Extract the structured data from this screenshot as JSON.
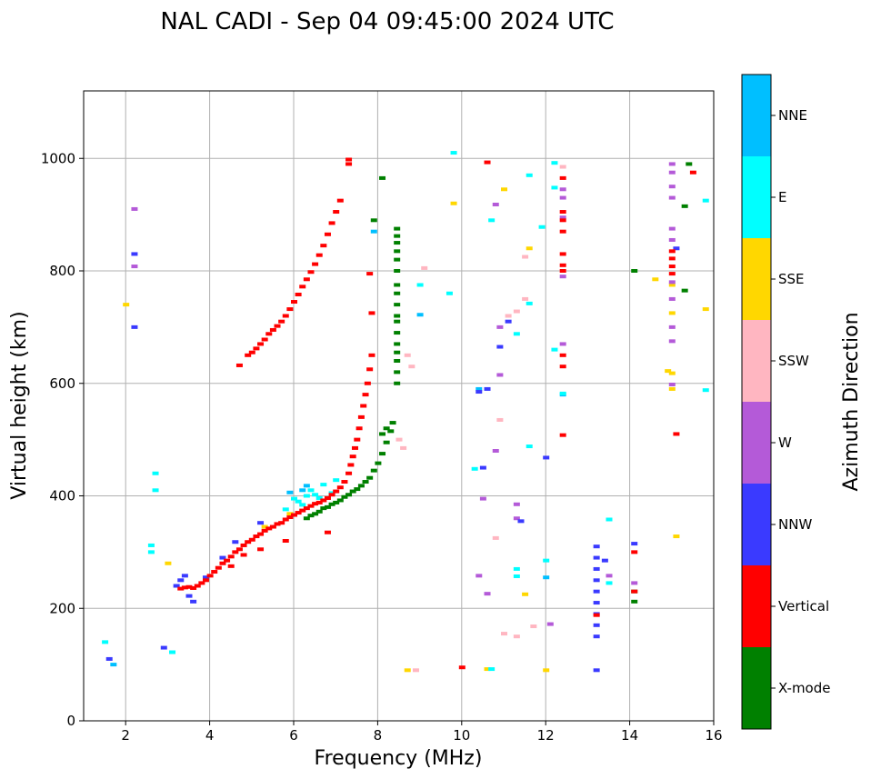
{
  "chart_data": {
    "type": "scatter",
    "title": "NAL CADI - Sep 04 09:45:00 2024 UTC",
    "xlabel": "Frequency (MHz)",
    "ylabel": "Virtual height (km)",
    "xlim": [
      1,
      16
    ],
    "ylim": [
      0,
      1120
    ],
    "xticks": [
      2,
      4,
      6,
      8,
      10,
      12,
      14,
      16
    ],
    "yticks": [
      0,
      200,
      400,
      600,
      800,
      1000
    ],
    "grid": true,
    "colorbar": {
      "title": "Azimuth Direction",
      "categories": [
        "X-mode",
        "Vertical",
        "NNW",
        "W",
        "SSW",
        "SSE",
        "E",
        "NNE"
      ],
      "colors": [
        "#008000",
        "#ff0000",
        "#3a3aff",
        "#b45ad8",
        "#ffb6c1",
        "#ffd700",
        "#00ffff",
        "#00bfff"
      ]
    },
    "series": [
      {
        "name": "X-mode",
        "points": [
          [
            6.3,
            360
          ],
          [
            6.4,
            365
          ],
          [
            6.5,
            368
          ],
          [
            6.6,
            372
          ],
          [
            6.7,
            378
          ],
          [
            6.8,
            380
          ],
          [
            6.9,
            385
          ],
          [
            7.0,
            388
          ],
          [
            7.1,
            392
          ],
          [
            7.2,
            398
          ],
          [
            7.3,
            402
          ],
          [
            7.4,
            408
          ],
          [
            7.5,
            412
          ],
          [
            7.6,
            418
          ],
          [
            7.7,
            425
          ],
          [
            7.8,
            432
          ],
          [
            7.9,
            445
          ],
          [
            8.0,
            458
          ],
          [
            8.1,
            475
          ],
          [
            8.2,
            495
          ],
          [
            8.3,
            515
          ],
          [
            8.35,
            530
          ],
          [
            8.1,
            510
          ],
          [
            8.2,
            520
          ],
          [
            8.45,
            600
          ],
          [
            8.45,
            620
          ],
          [
            8.45,
            640
          ],
          [
            8.45,
            655
          ],
          [
            8.45,
            670
          ],
          [
            8.45,
            690
          ],
          [
            8.45,
            710
          ],
          [
            8.45,
            720
          ],
          [
            8.45,
            740
          ],
          [
            8.45,
            760
          ],
          [
            8.45,
            775
          ],
          [
            8.45,
            800
          ],
          [
            8.45,
            820
          ],
          [
            8.45,
            835
          ],
          [
            8.45,
            850
          ],
          [
            8.45,
            862
          ],
          [
            8.45,
            875
          ],
          [
            7.9,
            890
          ],
          [
            8.1,
            965
          ],
          [
            14.1,
            800
          ],
          [
            14.1,
            230
          ],
          [
            14.1,
            212
          ],
          [
            15.3,
            765
          ],
          [
            15.3,
            915
          ],
          [
            15.4,
            990
          ]
        ]
      },
      {
        "name": "Vertical",
        "points": [
          [
            3.3,
            235
          ],
          [
            3.4,
            237
          ],
          [
            3.5,
            238
          ],
          [
            3.6,
            236
          ],
          [
            3.7,
            240
          ],
          [
            3.8,
            245
          ],
          [
            3.9,
            250
          ],
          [
            4.0,
            258
          ],
          [
            4.1,
            265
          ],
          [
            4.2,
            272
          ],
          [
            4.3,
            280
          ],
          [
            4.4,
            285
          ],
          [
            4.5,
            292
          ],
          [
            4.6,
            300
          ],
          [
            4.7,
            305
          ],
          [
            4.8,
            312
          ],
          [
            4.9,
            318
          ],
          [
            5.0,
            322
          ],
          [
            5.1,
            328
          ],
          [
            5.2,
            332
          ],
          [
            5.3,
            338
          ],
          [
            5.4,
            342
          ],
          [
            5.5,
            345
          ],
          [
            5.6,
            350
          ],
          [
            5.7,
            352
          ],
          [
            5.8,
            358
          ],
          [
            5.9,
            362
          ],
          [
            6.0,
            366
          ],
          [
            6.1,
            370
          ],
          [
            6.2,
            374
          ],
          [
            6.3,
            378
          ],
          [
            6.4,
            382
          ],
          [
            6.5,
            386
          ],
          [
            6.6,
            388
          ],
          [
            6.7,
            392
          ],
          [
            6.8,
            396
          ],
          [
            6.9,
            402
          ],
          [
            7.0,
            408
          ],
          [
            7.1,
            415
          ],
          [
            7.2,
            425
          ],
          [
            7.3,
            440
          ],
          [
            7.35,
            455
          ],
          [
            7.4,
            470
          ],
          [
            7.45,
            485
          ],
          [
            7.5,
            500
          ],
          [
            7.55,
            520
          ],
          [
            7.6,
            540
          ],
          [
            7.65,
            560
          ],
          [
            7.7,
            580
          ],
          [
            7.75,
            600
          ],
          [
            7.8,
            625
          ],
          [
            7.85,
            650
          ],
          [
            7.85,
            725
          ],
          [
            7.8,
            795
          ],
          [
            4.7,
            632
          ],
          [
            4.9,
            650
          ],
          [
            5.0,
            655
          ],
          [
            5.1,
            662
          ],
          [
            5.2,
            670
          ],
          [
            5.3,
            678
          ],
          [
            5.4,
            688
          ],
          [
            5.5,
            695
          ],
          [
            5.6,
            702
          ],
          [
            5.7,
            710
          ],
          [
            5.8,
            720
          ],
          [
            5.9,
            732
          ],
          [
            6.0,
            745
          ],
          [
            6.1,
            758
          ],
          [
            6.2,
            772
          ],
          [
            6.3,
            785
          ],
          [
            6.4,
            798
          ],
          [
            6.5,
            812
          ],
          [
            6.6,
            828
          ],
          [
            6.7,
            845
          ],
          [
            6.8,
            865
          ],
          [
            6.9,
            885
          ],
          [
            7.0,
            905
          ],
          [
            7.1,
            925
          ],
          [
            7.3,
            990
          ],
          [
            7.3,
            998
          ],
          [
            5.8,
            320
          ],
          [
            5.2,
            305
          ],
          [
            4.5,
            275
          ],
          [
            4.8,
            295
          ],
          [
            6.8,
            335
          ],
          [
            10.6,
            993
          ],
          [
            12.4,
            965
          ],
          [
            12.4,
            905
          ],
          [
            12.4,
            890
          ],
          [
            12.4,
            870
          ],
          [
            12.4,
            830
          ],
          [
            12.4,
            810
          ],
          [
            12.4,
            800
          ],
          [
            12.4,
            650
          ],
          [
            12.4,
            630
          ],
          [
            12.4,
            508
          ],
          [
            14.1,
            300
          ],
          [
            15.0,
            835
          ],
          [
            15.0,
            822
          ],
          [
            15.0,
            808
          ],
          [
            15.0,
            795
          ],
          [
            15.1,
            510
          ],
          [
            15.5,
            975
          ],
          [
            10.0,
            95
          ],
          [
            13.2,
            188
          ],
          [
            14.1,
            230
          ]
        ]
      },
      {
        "name": "NNW",
        "points": [
          [
            3.3,
            250
          ],
          [
            3.4,
            258
          ],
          [
            3.2,
            240
          ],
          [
            3.5,
            222
          ],
          [
            3.6,
            212
          ],
          [
            3.9,
            255
          ],
          [
            4.3,
            290
          ],
          [
            4.6,
            318
          ],
          [
            5.2,
            352
          ],
          [
            13.2,
            150
          ],
          [
            13.2,
            170
          ],
          [
            13.2,
            190
          ],
          [
            13.2,
            210
          ],
          [
            13.2,
            230
          ],
          [
            13.2,
            250
          ],
          [
            13.2,
            270
          ],
          [
            13.2,
            290
          ],
          [
            13.2,
            310
          ],
          [
            14.1,
            315
          ],
          [
            15.1,
            840
          ],
          [
            11.1,
            710
          ],
          [
            10.6,
            590
          ],
          [
            10.4,
            585
          ],
          [
            2.2,
            830
          ],
          [
            2.2,
            700
          ],
          [
            1.6,
            110
          ],
          [
            2.9,
            130
          ],
          [
            10.9,
            665
          ],
          [
            10.5,
            450
          ],
          [
            11.4,
            355
          ],
          [
            12.0,
            468
          ],
          [
            13.2,
            90
          ],
          [
            13.4,
            285
          ]
        ]
      },
      {
        "name": "W",
        "points": [
          [
            2.2,
            910
          ],
          [
            2.2,
            808
          ],
          [
            12.4,
            945
          ],
          [
            12.4,
            930
          ],
          [
            12.4,
            895
          ],
          [
            12.4,
            790
          ],
          [
            12.4,
            670
          ],
          [
            15.0,
            990
          ],
          [
            15.0,
            975
          ],
          [
            15.0,
            950
          ],
          [
            15.0,
            930
          ],
          [
            15.0,
            875
          ],
          [
            15.0,
            855
          ],
          [
            15.0,
            780
          ],
          [
            15.0,
            750
          ],
          [
            15.0,
            700
          ],
          [
            15.0,
            675
          ],
          [
            15.0,
            598
          ],
          [
            10.8,
            480
          ],
          [
            10.9,
            700
          ],
          [
            10.9,
            615
          ],
          [
            10.5,
            395
          ],
          [
            11.3,
            360
          ],
          [
            11.3,
            385
          ],
          [
            10.4,
            258
          ],
          [
            12.1,
            172
          ],
          [
            13.5,
            258
          ],
          [
            14.1,
            245
          ],
          [
            10.6,
            226
          ],
          [
            10.8,
            918
          ]
        ]
      },
      {
        "name": "SSW",
        "points": [
          [
            11.5,
            825
          ],
          [
            11.5,
            750
          ],
          [
            11.1,
            720
          ],
          [
            11.3,
            728
          ],
          [
            12.4,
            985
          ],
          [
            11.7,
            168
          ],
          [
            11.3,
            150
          ],
          [
            11.0,
            155
          ],
          [
            10.8,
            325
          ],
          [
            10.9,
            535
          ],
          [
            8.7,
            650
          ],
          [
            8.8,
            630
          ],
          [
            9.1,
            805
          ],
          [
            8.9,
            90
          ],
          [
            8.5,
            500
          ],
          [
            8.6,
            485
          ]
        ]
      },
      {
        "name": "SSE",
        "points": [
          [
            14.6,
            785
          ],
          [
            15.0,
            775
          ],
          [
            15.0,
            725
          ],
          [
            15.0,
            618
          ],
          [
            15.0,
            590
          ],
          [
            15.1,
            328
          ],
          [
            15.8,
            732
          ],
          [
            14.9,
            622
          ],
          [
            9.8,
            920
          ],
          [
            11.0,
            945
          ],
          [
            11.6,
            840
          ],
          [
            8.7,
            90
          ],
          [
            2.0,
            740
          ],
          [
            3.0,
            280
          ],
          [
            5.3,
            345
          ],
          [
            5.9,
            368
          ],
          [
            10.6,
            92
          ],
          [
            11.5,
            225
          ],
          [
            12.0,
            90
          ]
        ]
      },
      {
        "name": "E",
        "points": [
          [
            6.3,
            400
          ],
          [
            6.4,
            410
          ],
          [
            6.5,
            402
          ],
          [
            6.6,
            396
          ],
          [
            6.1,
            390
          ],
          [
            6.2,
            384
          ],
          [
            5.8,
            376
          ],
          [
            6.0,
            395
          ],
          [
            6.7,
            420
          ],
          [
            6.9,
            405
          ],
          [
            7.0,
            428
          ],
          [
            12.2,
            660
          ],
          [
            12.4,
            582
          ],
          [
            12.2,
            992
          ],
          [
            12.2,
            948
          ],
          [
            11.6,
            970
          ],
          [
            11.9,
            878
          ],
          [
            11.6,
            742
          ],
          [
            11.3,
            688
          ],
          [
            11.6,
            488
          ],
          [
            11.3,
            270
          ],
          [
            11.3,
            257
          ],
          [
            10.7,
            890
          ],
          [
            10.3,
            448
          ],
          [
            9.7,
            760
          ],
          [
            9.8,
            1010
          ],
          [
            13.5,
            358
          ],
          [
            13.5,
            245
          ],
          [
            15.8,
            925
          ],
          [
            15.8,
            588
          ],
          [
            2.7,
            440
          ],
          [
            2.7,
            410
          ],
          [
            1.5,
            140
          ],
          [
            2.6,
            312
          ],
          [
            2.6,
            300
          ],
          [
            3.1,
            122
          ],
          [
            9.0,
            775
          ],
          [
            10.7,
            92
          ],
          [
            12.0,
            285
          ]
        ]
      },
      {
        "name": "NNE",
        "points": [
          [
            6.2,
            410
          ],
          [
            6.3,
            418
          ],
          [
            5.9,
            406
          ],
          [
            12.0,
            255
          ],
          [
            10.4,
            590
          ],
          [
            12.4,
            580
          ],
          [
            7.9,
            870
          ],
          [
            9.0,
            722
          ],
          [
            1.7,
            100
          ]
        ]
      }
    ]
  }
}
